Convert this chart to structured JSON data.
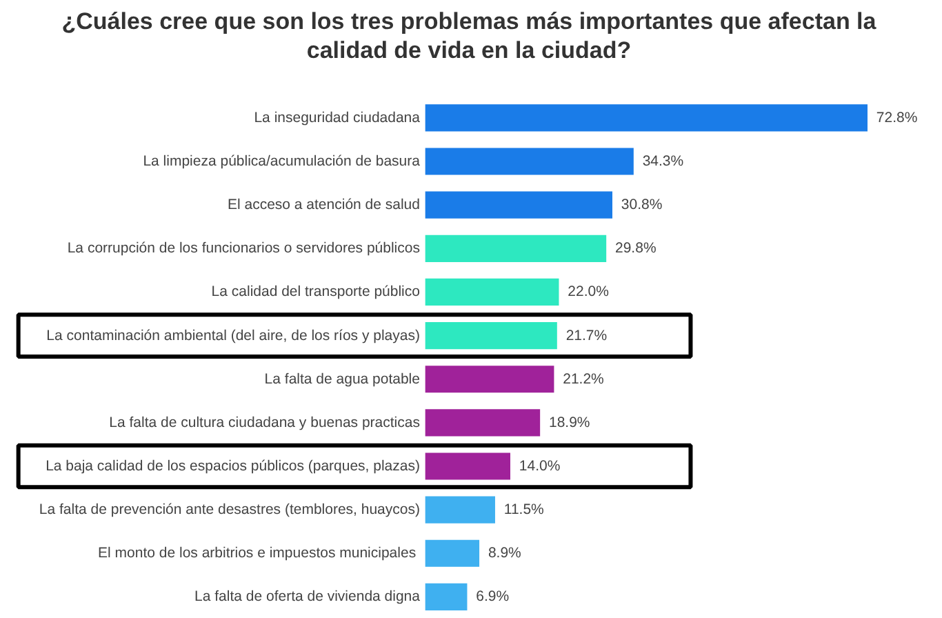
{
  "chart_data": {
    "type": "bar",
    "orientation": "horizontal",
    "title": "¿Cuáles cree que son los tres problemas más importantes que afectan la calidad de vida en la ciudad?",
    "categories": [
      "La inseguridad ciudadana",
      "La limpieza pública/acumulación de basura",
      "El acceso a atención de salud",
      "La corrupción de los funcionarios o servidores públicos",
      "La calidad del transporte público",
      "La contaminación ambiental (del aire, de los ríos y playas)",
      "La falta de agua potable",
      "La falta de cultura ciudadana y buenas practicas",
      "La baja calidad de los espacios públicos (parques, plazas)",
      "La falta de prevención ante desastres (temblores, huaycos)",
      "El  monto de los arbitrios e impuestos municipales",
      "La falta de oferta de vivienda digna"
    ],
    "values": [
      72.8,
      34.3,
      30.8,
      29.8,
      22.0,
      21.7,
      21.2,
      18.9,
      14.0,
      11.5,
      8.9,
      6.9
    ],
    "value_labels": [
      "72.8%",
      "34.3%",
      "30.8%",
      "29.8%",
      "22.0%",
      "21.7%",
      "21.2%",
      "18.9%",
      "14.0%",
      "11.5%",
      "8.9%",
      "6.9%"
    ],
    "colors": [
      "#1a7ce8",
      "#1a7ce8",
      "#1a7ce8",
      "#2de8c0",
      "#2de8c0",
      "#2de8c0",
      "#a0229a",
      "#a0229a",
      "#a0229a",
      "#3fb0f0",
      "#3fb0f0",
      "#3fb0f0"
    ]
  }
}
